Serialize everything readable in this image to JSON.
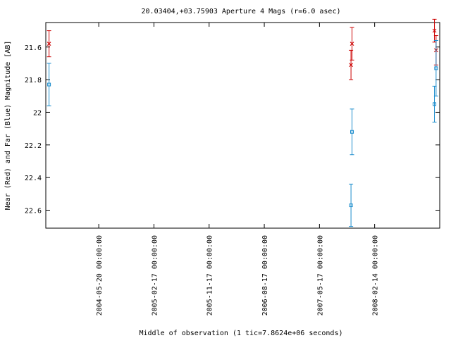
{
  "chart_data": {
    "type": "scatter",
    "title": "20.03404,+03.75903   Aperture 4 Mags (r=6.0 asec)",
    "xlabel": "Middle of observation (1 tic=7.8624e+06 seconds)",
    "ylabel": "Near (Red) and Far (Blue) Magnitude [AB]",
    "y_inverted": true,
    "ylim": [
      22.71,
      21.45
    ],
    "xlim": [
      "2003-09-01",
      "2009-01-01"
    ],
    "x_ticks": [
      "2004-05-20 00:00:00",
      "2005-02-17 00:00:00",
      "2005-11-17 00:00:00",
      "2006-08-17 00:00:00",
      "2007-05-17 00:00:00",
      "2008-02-14 00:00:00"
    ],
    "y_ticks": [
      "21.6",
      "21.8",
      "22",
      "22.2",
      "22.4",
      "22.6"
    ],
    "grid": false,
    "legend": "none",
    "series": [
      {
        "color": "#cc0000",
        "marker": "x",
        "points": [
          {
            "x": "2003-09-17",
            "y": 21.58,
            "err": 0.08
          },
          {
            "x": "2007-10-20",
            "y": 21.71,
            "err": 0.09
          },
          {
            "x": "2007-10-25",
            "y": 21.58,
            "err": 0.1
          },
          {
            "x": "2008-12-06",
            "y": 21.5,
            "err": 0.07
          },
          {
            "x": "2008-12-14",
            "y": 21.62,
            "err": 0.09
          }
        ]
      },
      {
        "color": "#1a8ccc",
        "marker": "square",
        "points": [
          {
            "x": "2003-09-17",
            "y": 21.83,
            "err": 0.13
          },
          {
            "x": "2007-10-20",
            "y": 22.57,
            "err": 0.13
          },
          {
            "x": "2007-10-25",
            "y": 22.12,
            "err": 0.14
          },
          {
            "x": "2008-12-06",
            "y": 21.95,
            "err": 0.11
          },
          {
            "x": "2008-12-14",
            "y": 21.73,
            "err": 0.17
          }
        ]
      }
    ]
  }
}
